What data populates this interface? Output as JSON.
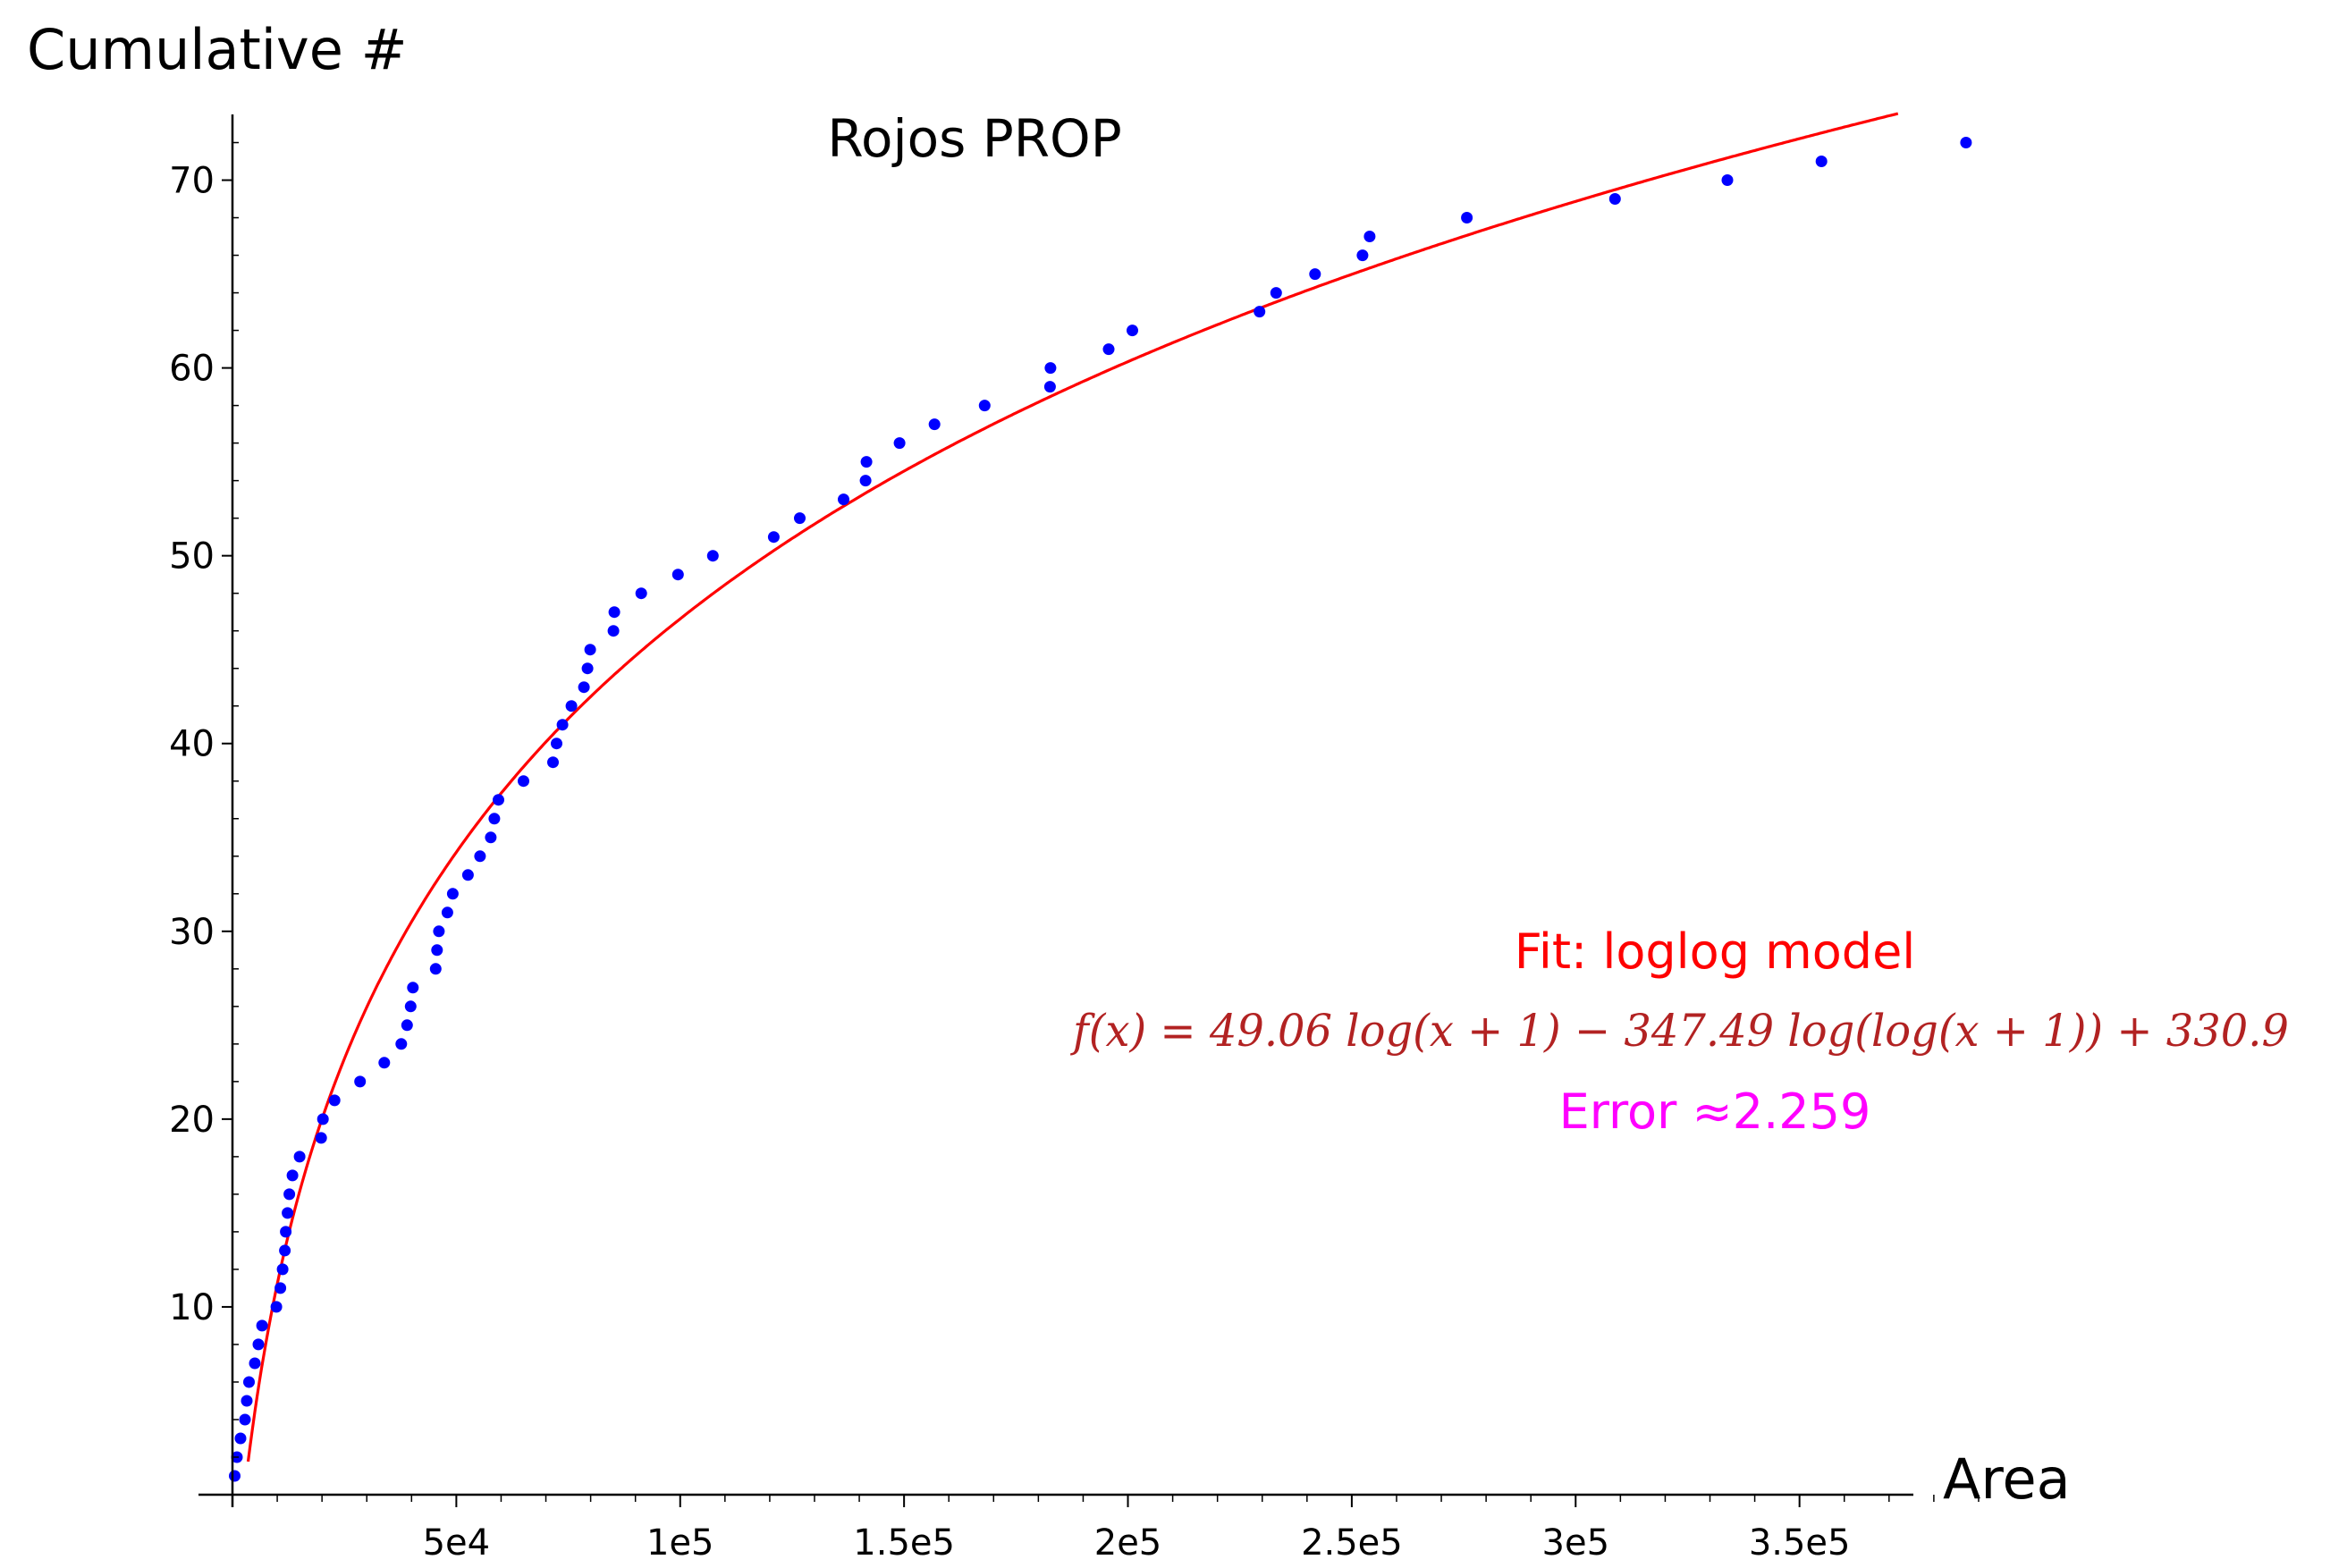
{
  "chart_data": {
    "type": "scatter",
    "title": "Rojos PROP",
    "xlabel": "Area",
    "ylabel": "Cumulative #",
    "xlim": [
      0,
      395000
    ],
    "ylim": [
      0,
      73.5
    ],
    "x_ticks": [
      50000,
      100000,
      150000,
      200000,
      250000,
      300000,
      350000
    ],
    "x_tick_labels": [
      "5e4",
      "1e5",
      "1.5e5",
      "2e5",
      "2.5e5",
      "3e5",
      "3.5e5"
    ],
    "y_ticks": [
      10,
      20,
      30,
      40,
      50,
      60,
      70
    ],
    "y_tick_labels": [
      "10",
      "20",
      "30",
      "40",
      "50",
      "60",
      "70"
    ],
    "grid": false,
    "colors": {
      "points": "#0000ff",
      "fit": "#ff0000",
      "formula": "#b22222",
      "error": "#ff00ff"
    },
    "series": [
      {
        "type": "scatter",
        "x": [
          500,
          1000,
          1800,
          2800,
          3200,
          3700,
          5000,
          5800,
          6600,
          9800,
          10700,
          11200,
          11700,
          11900,
          12300,
          12700,
          13400,
          15000,
          19800,
          20200,
          22800,
          28500,
          33900,
          37700,
          39000,
          39800,
          40300,
          45400,
          45700,
          46100,
          48000,
          49200,
          52600,
          55300,
          57700,
          58500,
          59400,
          65000,
          71600,
          72400,
          73700,
          75700,
          78500,
          79300,
          79900,
          85100,
          85300,
          91300,
          99500,
          107300,
          120900,
          126700,
          136500,
          141400,
          141600,
          149000,
          156800,
          168000,
          182600,
          182700,
          195700,
          201000,
          229400,
          233100,
          241800,
          252400,
          254000,
          275700,
          308800,
          333900,
          354900,
          387200
        ],
        "y": [
          1,
          2,
          3,
          4,
          5,
          6,
          7,
          8,
          9,
          10,
          11,
          12,
          13,
          14,
          15,
          16,
          17,
          18,
          19,
          20,
          21,
          22,
          23,
          24,
          25,
          26,
          27,
          28,
          29,
          30,
          31,
          32,
          33,
          34,
          35,
          36,
          37,
          38,
          39,
          40,
          41,
          42,
          43,
          44,
          45,
          46,
          47,
          48,
          49,
          50,
          51,
          52,
          53,
          54,
          55,
          56,
          57,
          58,
          59,
          60,
          61,
          62,
          63,
          64,
          65,
          66,
          67,
          68,
          69,
          70,
          71,
          72
        ]
      },
      {
        "type": "line",
        "model": "loglog",
        "coefficients": {
          "a": 49.06,
          "b": -347.49,
          "c": 330.9
        }
      }
    ],
    "annotations": {
      "fit_label": "Fit: loglog model",
      "formula": "f(x) = 49.06 log(x + 1) − 347.49 log(log(x + 1)) + 330.9",
      "error": "Error ≈2.259"
    }
  }
}
